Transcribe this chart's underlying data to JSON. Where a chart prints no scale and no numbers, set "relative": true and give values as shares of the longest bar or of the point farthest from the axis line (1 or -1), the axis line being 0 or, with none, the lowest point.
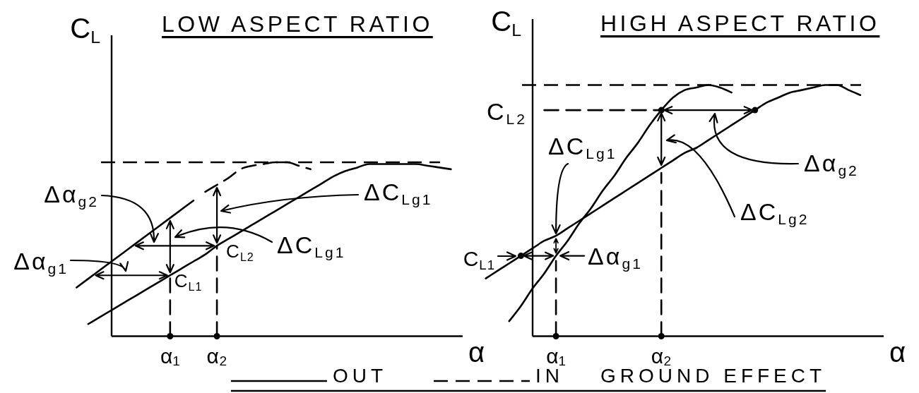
{
  "chart_data": [
    {
      "type": "line",
      "title": "LOW ASPECT RATIO",
      "xlabel": "α",
      "ylabel": "C$_{L}$",
      "relative": true,
      "legend": "bottom",
      "legend_title": "GROUND EFFECT",
      "categories": [
        null,
        null,
        null,
        null,
        null,
        null,
        null,
        null,
        "α₁",
        null,
        null,
        null,
        "α₂",
        null,
        null,
        null,
        null,
        null,
        null,
        null,
        null,
        null,
        null,
        null,
        null,
        null,
        null,
        null,
        null,
        null,
        null,
        null,
        null,
        null
      ],
      "series": [
        {
          "name": "OUT",
          "color": "#000000",
          "line_style": "solid",
          "values": [
            null,
            0.07,
            0.11,
            0.15,
            0.19,
            0.23,
            0.27,
            0.31,
            0.35,
            0.39,
            0.43,
            0.47,
            0.52,
            0.56,
            0.6,
            0.64,
            0.68,
            0.72,
            0.76,
            0.8,
            0.84,
            0.88,
            0.92,
            0.95,
            0.97,
            0.99,
            0.99,
            0.99,
            0.99,
            0.99,
            0.98,
            0.97,
            0.96,
            null
          ]
        },
        {
          "name": "IN",
          "color": "#000000",
          "line_style": "dashed",
          "values": [
            null,
            null,
            null,
            null,
            null,
            null,
            null,
            null,
            null,
            null,
            null,
            0.83,
            0.87,
            0.91,
            0.96,
            0.98,
            0.99,
            1.0,
            1.0,
            0.98,
            0.96,
            null,
            null,
            null,
            null,
            null,
            null,
            null,
            null,
            null,
            null,
            null,
            null,
            null
          ]
        },
        {
          "color": "#000000",
          "line_style": "solid",
          "values": [
            0.28,
            0.33,
            0.38,
            0.43,
            0.48,
            0.53,
            0.58,
            0.63,
            0.68,
            0.73,
            0.78,
            null,
            null,
            null,
            null,
            null,
            null,
            null,
            null,
            null,
            null,
            null,
            null,
            null,
            null,
            null,
            null,
            null,
            null,
            null,
            null,
            null,
            null,
            null
          ]
        },
        {
          "color": "#000000",
          "line_style": "dashed",
          "x": [
            "α₁",
            "α₁"
          ],
          "values": [
            0,
            0.35
          ]
        },
        {
          "color": "#000000",
          "line_style": "dashed",
          "x": [
            "α₂",
            "α₂"
          ],
          "values": [
            0,
            0.52
          ]
        },
        {
          "type": "scatter",
          "color": "#000000",
          "marker": "circle",
          "values": [
            null,
            null,
            null,
            null,
            null,
            null,
            null,
            null,
            0,
            null,
            null,
            null,
            0,
            null,
            null,
            null,
            null,
            null,
            null,
            null,
            null,
            null,
            null,
            null,
            null,
            null,
            null,
            null,
            null,
            null,
            null,
            null,
            null,
            null
          ]
        }
      ],
      "ref_lines": [
        {
          "axis": "y",
          "value": 1,
          "line_style": "dashed"
        }
      ],
      "annotations": [
        {
          "text": "C$_{L1}$",
          "x": "α₁",
          "y": 0.35
        },
        {
          "text": "C$_{L2}$",
          "x": "α₂",
          "y": 0.52
        },
        "Δα$_{g1}$",
        "Δα$_{g2}$",
        "ΔC$_{Lg1}$",
        "ΔC$_{Lg1}$"
      ]
    },
    {
      "type": "line",
      "title": "HIGH ASPECT RATIO",
      "xlabel": "α",
      "ylabel": "C$_{L}$",
      "relative": true,
      "categories": [
        null,
        null,
        null,
        null,
        null,
        null,
        "α₁",
        null,
        null,
        null,
        null,
        null,
        null,
        null,
        null,
        "α₂",
        null,
        null,
        null,
        null,
        null,
        null,
        null,
        null,
        null,
        null,
        null,
        null,
        null,
        null,
        null,
        null,
        null,
        null,
        null
      ],
      "series": [
        {
          "color": "#000000",
          "line_style": "solid",
          "values": [
            0.23,
            0.26,
            0.29,
            0.32,
            0.35,
            0.38,
            0.4,
            0.43,
            0.46,
            0.49,
            0.52,
            0.55,
            0.58,
            0.61,
            0.64,
            0.67,
            0.7,
            0.73,
            0.75,
            0.78,
            0.81,
            0.84,
            0.87,
            0.9,
            0.93,
            0.95,
            0.97,
            0.98,
            0.99,
            1.0,
            1.0,
            0.98,
            0.96,
            null,
            null
          ]
        },
        {
          "color": "#000000",
          "line_style": "solid",
          "values": [
            null,
            null,
            0.06,
            0.12,
            0.19,
            0.25,
            0.32,
            0.38,
            0.45,
            0.51,
            0.58,
            0.64,
            0.71,
            0.77,
            0.84,
            0.9,
            0.95,
            0.98,
            0.99,
            1.0,
            0.99,
            0.97,
            null,
            null,
            null,
            null,
            null,
            null,
            null,
            null,
            null,
            null,
            null,
            null,
            null
          ]
        },
        {
          "type": "scatter",
          "color": "#000000",
          "marker": "circle",
          "values": [
            null,
            null,
            null,
            0.32,
            null,
            null,
            null,
            null,
            null,
            null,
            null,
            null,
            null,
            null,
            null,
            0.9,
            null,
            null,
            null,
            null,
            null,
            null,
            null,
            0.9,
            null,
            null,
            null,
            null,
            null,
            null,
            null,
            null,
            null,
            null,
            null
          ]
        },
        {
          "color": "#000000",
          "line_style": "dashed",
          "values": [
            null,
            null,
            null,
            null,
            null,
            0.9,
            0.9,
            0.9,
            0.9,
            0.9,
            0.9,
            0.9,
            0.9,
            0.9,
            0.9,
            0.9,
            null,
            null,
            null,
            null,
            null,
            null,
            null,
            null,
            null,
            null,
            null,
            null,
            null,
            null,
            null,
            null,
            null,
            null,
            null
          ]
        },
        {
          "color": "#000000",
          "line_style": "dashed",
          "x": [
            "α₁",
            "α₁"
          ],
          "values": [
            0,
            0.3
          ]
        },
        {
          "color": "#000000",
          "line_style": "dashed",
          "x": [
            "α₂",
            "α₂"
          ],
          "values": [
            0,
            0.65
          ]
        },
        {
          "type": "scatter",
          "color": "#000000",
          "marker": "circle",
          "values": [
            null,
            null,
            null,
            null,
            null,
            null,
            0,
            null,
            null,
            null,
            null,
            null,
            null,
            null,
            null,
            0,
            null,
            null,
            null,
            null,
            null,
            null,
            null,
            null,
            null,
            null,
            null,
            null,
            null,
            null,
            null,
            null,
            null,
            null,
            null
          ]
        }
      ],
      "ref_lines": [
        {
          "axis": "y",
          "value": 1,
          "line_style": "dashed"
        }
      ],
      "annotations": [
        "C$_{L1}$",
        "C$_{L2}$",
        {
          "text": "ΔC$_{Lg1}$",
          "x": "α₁",
          "y": 0.4
        },
        {
          "text": "Δα$_{g1}$",
          "x": "α₁",
          "y": 0.32
        },
        "ΔC$_{Lg2}$",
        "Δα$_{g2}$"
      ]
    }
  ]
}
